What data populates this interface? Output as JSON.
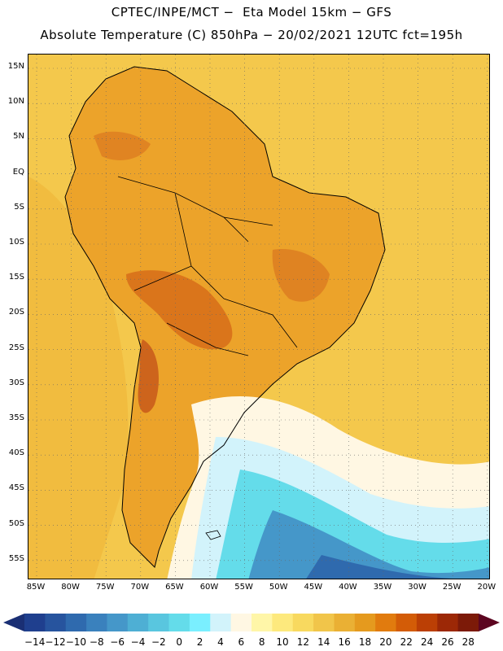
{
  "header": {
    "line1": "CPTEC/INPE/MCT −  Eta Model 15km − GFS",
    "line2": "Absolute Temperature (C) 850hPa − 20/02/2021 12UTC fct=195h"
  },
  "axes": {
    "lat_ticks": [
      "15N",
      "10N",
      "5N",
      "EQ",
      "5S",
      "10S",
      "15S",
      "20S",
      "25S",
      "30S",
      "35S",
      "40S",
      "45S",
      "50S",
      "55S"
    ],
    "lon_ticks": [
      "85W",
      "80W",
      "75W",
      "70W",
      "65W",
      "60W",
      "55W",
      "50W",
      "45W",
      "40W",
      "35W",
      "30W",
      "25W",
      "20W"
    ]
  },
  "colorbar": {
    "labels": [
      "-14",
      "-12",
      "-10",
      "-8",
      "-6",
      "-4",
      "-2",
      "0",
      "2",
      "4",
      "6",
      "8",
      "10",
      "12",
      "14",
      "16",
      "18",
      "20",
      "22",
      "24",
      "26",
      "28"
    ],
    "colors": [
      "#1f3f8e",
      "#27549e",
      "#2f6aae",
      "#3a81bd",
      "#4597c9",
      "#4eafd4",
      "#59c6df",
      "#64dcea",
      "#7aefff",
      "#d2f3fb",
      "#fff7e3",
      "#fff6a8",
      "#fde97d",
      "#f8d95f",
      "#f1c54a",
      "#eab034",
      "#e59a1e",
      "#e17b0e",
      "#d35c07",
      "#bb3f05",
      "#9c2806",
      "#7c1a08"
    ],
    "left_arrow_color": "#1a2f74",
    "right_arrow_color": "#5c0520"
  },
  "map": {
    "ocean_background": "#f4c84c",
    "continent_color": "#eca32a"
  }
}
